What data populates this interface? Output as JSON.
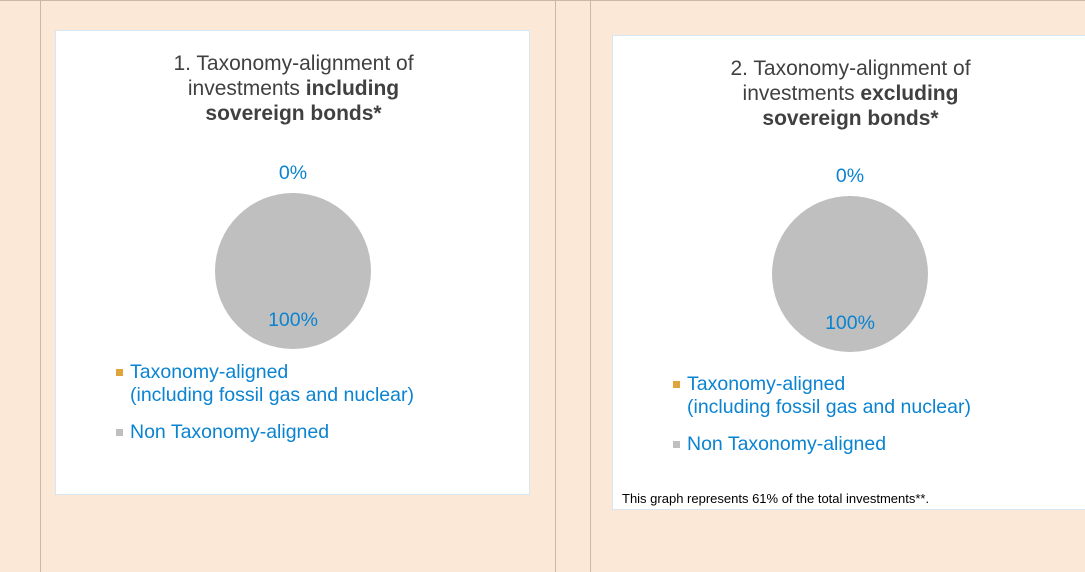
{
  "chart_data": [
    {
      "type": "pie",
      "title": [
        "1. Taxonomy-alignment of\ninvestments ",
        "including\nsovereign bonds*"
      ],
      "categories": [
        "Taxonomy-aligned\n(including fossil gas and nuclear)",
        "Non Taxonomy-aligned"
      ],
      "values": [
        0,
        100
      ],
      "value_labels": [
        "0%",
        "100%"
      ],
      "colors": [
        "#9a6a2c",
        "#bfbfbf"
      ]
    },
    {
      "type": "pie",
      "title": [
        "2. Taxonomy-alignment of\ninvestments ",
        "excluding\nsovereign bonds*"
      ],
      "categories": [
        "Taxonomy-aligned\n(including fossil gas and nuclear)",
        "Non Taxonomy-aligned"
      ],
      "values": [
        0,
        100
      ],
      "value_labels": [
        "0%",
        "100%"
      ],
      "colors": [
        "#9a6a2c",
        "#bfbfbf"
      ],
      "annotation": "This graph represents 61% of the total investments**."
    }
  ]
}
